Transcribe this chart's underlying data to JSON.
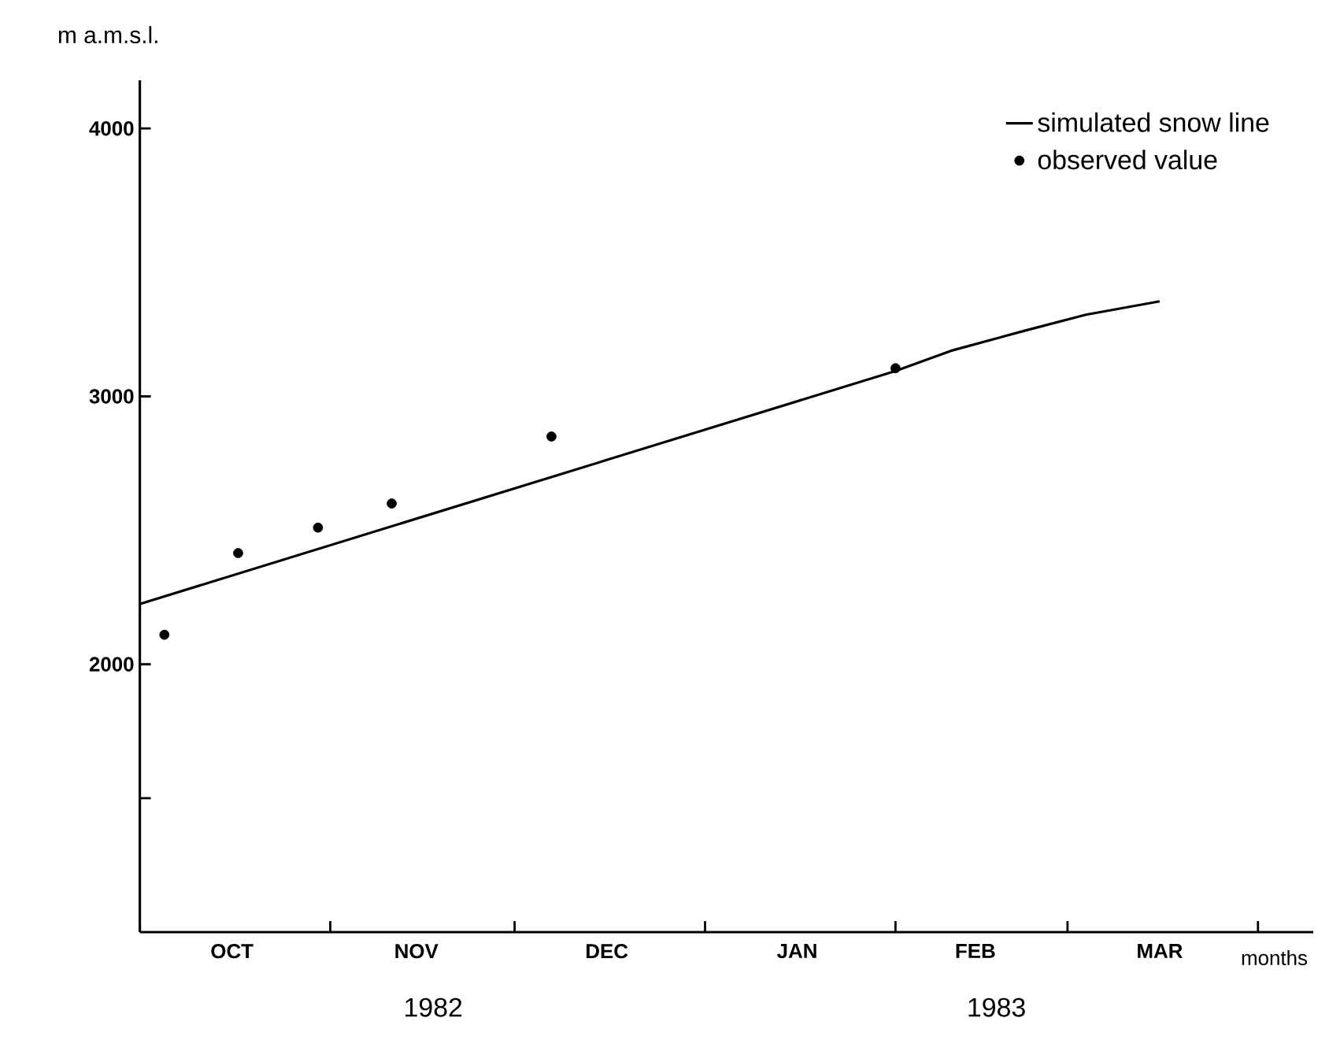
{
  "chart_data": {
    "type": "line",
    "ylabel": "m a.m.s.l.",
    "xlabel": "months",
    "xlim": [
      "1982-10-01",
      "1983-04-10"
    ],
    "xticks": [
      {
        "value": "1982-10-16",
        "label": "OCT"
      },
      {
        "value": "1982-11-15",
        "label": "NOV"
      },
      {
        "value": "1982-12-16",
        "label": "DEC"
      },
      {
        "value": "1983-01-16",
        "label": "JAN"
      },
      {
        "value": "1983-02-14",
        "label": "FEB"
      },
      {
        "value": "1983-03-16",
        "label": "MAR"
      },
      {
        "value": "1982-11-01",
        "label": null
      },
      {
        "value": "1982-12-01",
        "label": null
      },
      {
        "value": "1983-01-01",
        "label": null
      },
      {
        "value": "1983-02-01",
        "label": null
      },
      {
        "value": "1983-03-01",
        "label": null
      },
      {
        "value": "1983-04-01",
        "label": null
      }
    ],
    "ylim": [
      1000,
      4180
    ],
    "yticks": [
      2000,
      3000,
      4000,
      {
        "value": 1500,
        "label": null
      }
    ],
    "legend": "top right",
    "series": [
      {
        "name": "simulated snow line",
        "color": "#000000",
        "marker": "none",
        "line_style": "solid",
        "x": [
          "1982-10-01",
          "1983-02-01",
          "1983-02-10",
          "1983-02-22",
          "1983-03-04",
          "1983-03-16"
        ],
        "values": [
          2225,
          3095,
          3170,
          3245,
          3305,
          3355
        ]
      },
      {
        "name": "observed value",
        "type": "scatter",
        "color": "#000000",
        "marker": "circle",
        "x": [
          "1982-10-05",
          "1982-10-17",
          "1982-10-30",
          "1982-11-11",
          "1982-12-07",
          "1983-02-01"
        ],
        "values": [
          2110,
          2415,
          2510,
          2600,
          2850,
          3105
        ]
      }
    ],
    "annotations": [
      "1982",
      "1983"
    ]
  }
}
